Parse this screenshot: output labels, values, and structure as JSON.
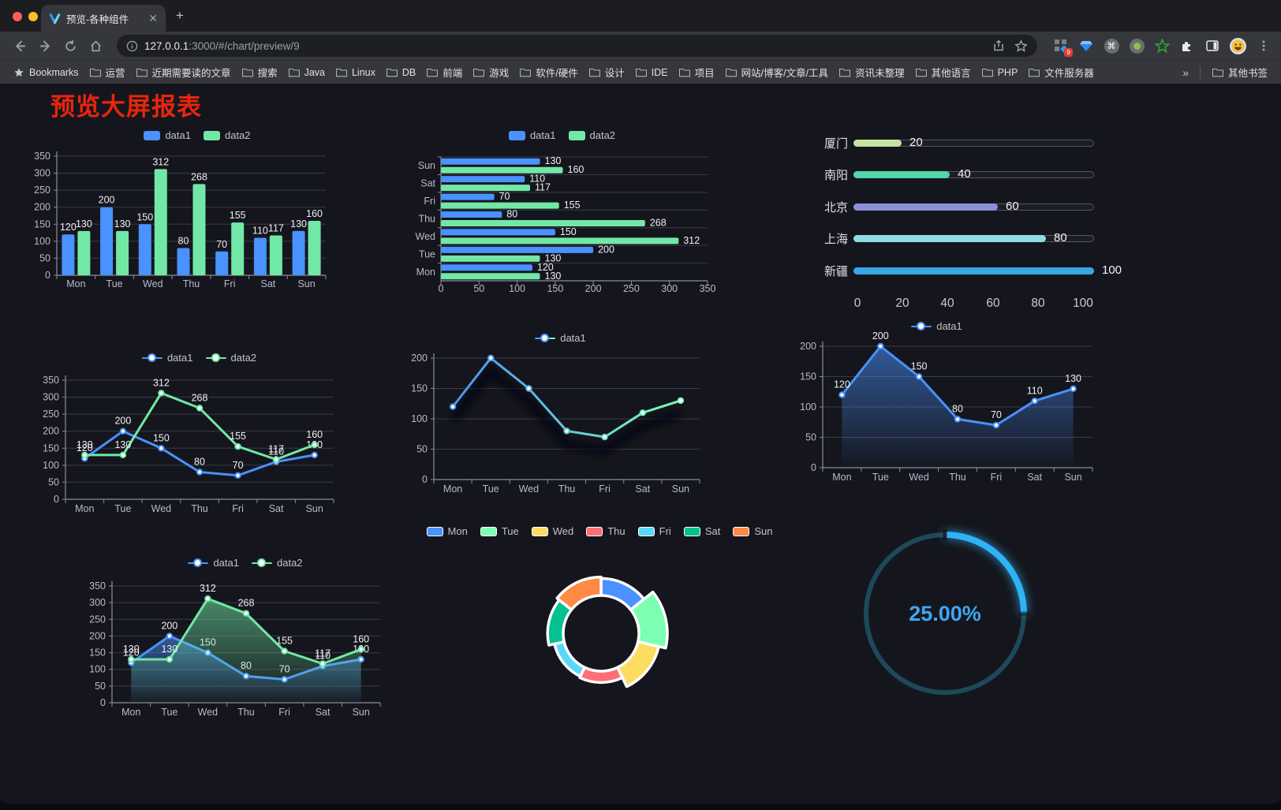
{
  "browser": {
    "tab": {
      "title": "预览-各种组件"
    },
    "url": {
      "host": "127.0.0.1",
      "rest": ":3000/#/chart/preview/9"
    },
    "bookmarks_label": "Bookmarks",
    "bookmarks": [
      "运营",
      "近期需要读的文章",
      "搜索",
      "Java",
      "Linux",
      "DB",
      "前端",
      "游戏",
      "软件/硬件",
      "设计",
      "IDE",
      "项目",
      "网站/博客/文章/工具",
      "资讯未整理",
      "其他语言",
      "PHP",
      "文件服务器"
    ],
    "bookmarks_overflow": "»",
    "other_bookmarks": "其他书签",
    "extension_badge": "9"
  },
  "page": {
    "title": "预览大屏报表",
    "title_color": "#e8250c"
  },
  "colors": {
    "series1": "#4992ff",
    "series2": "#72e8a6",
    "palette": [
      "#4992ff",
      "#7cffb2",
      "#fddd60",
      "#ff6e76",
      "#58d9f9",
      "#05c091",
      "#ff8a45"
    ],
    "gauge_arc": "#2eb3f6",
    "gauge_track": "#1d4959",
    "gauge_text": "#3fa6f3"
  },
  "chart_data": [
    {
      "id": "bar-vertical",
      "type": "bar",
      "categories": [
        "Mon",
        "Tue",
        "Wed",
        "Thu",
        "Fri",
        "Sat",
        "Sun"
      ],
      "series": [
        {
          "name": "data1",
          "color": "#4992ff",
          "values": [
            120,
            200,
            150,
            80,
            70,
            110,
            130
          ]
        },
        {
          "name": "data2",
          "color": "#72e8a6",
          "values": [
            130,
            130,
            312,
            268,
            155,
            117,
            160
          ]
        }
      ],
      "ylim": [
        0,
        350
      ],
      "ystep": 50,
      "legend_position": "top",
      "grid": true,
      "labels": true
    },
    {
      "id": "bar-horizontal",
      "type": "bar-horizontal",
      "categories_top_to_bottom": [
        "Sun",
        "Sat",
        "Fri",
        "Thu",
        "Wed",
        "Tue",
        "Mon"
      ],
      "series": [
        {
          "name": "data1",
          "color": "#4992ff",
          "values": [
            130,
            110,
            70,
            80,
            150,
            200,
            120
          ]
        },
        {
          "name": "data2",
          "color": "#72e8a6",
          "values": [
            160,
            117,
            155,
            268,
            312,
            130,
            130
          ]
        }
      ],
      "xlim": [
        0,
        350
      ],
      "xstep": 50,
      "legend_position": "top",
      "grid": true,
      "labels": true
    },
    {
      "id": "progress-bars",
      "type": "progress",
      "rows": [
        {
          "label": "厦门",
          "value": 20,
          "color": "#c5e3a2"
        },
        {
          "label": "南阳",
          "value": 40,
          "color": "#50d6a8"
        },
        {
          "label": "北京",
          "value": 60,
          "color": "#8a90d8"
        },
        {
          "label": "上海",
          "value": 80,
          "color": "#8edde3"
        },
        {
          "label": "新疆",
          "value": 100,
          "color": "#38a7e8"
        }
      ],
      "xticks": [
        0,
        20,
        40,
        60,
        80,
        100
      ],
      "xlim": [
        0,
        100
      ]
    },
    {
      "id": "line-multi",
      "type": "line",
      "categories": [
        "Mon",
        "Tue",
        "Wed",
        "Thu",
        "Fri",
        "Sat",
        "Sun"
      ],
      "series": [
        {
          "name": "data1",
          "color": "#4992ff",
          "values": [
            120,
            200,
            150,
            80,
            70,
            110,
            130
          ]
        },
        {
          "name": "data2",
          "color": "#72e8a6",
          "values": [
            130,
            130,
            312,
            268,
            155,
            117,
            160
          ]
        }
      ],
      "ylim": [
        0,
        350
      ],
      "ystep": 50,
      "labels": true,
      "legend_position": "top",
      "grid": true
    },
    {
      "id": "line-gradient",
      "type": "line",
      "categories": [
        "Mon",
        "Tue",
        "Wed",
        "Thu",
        "Fri",
        "Sat",
        "Sun"
      ],
      "series": [
        {
          "name": "data1",
          "color": "#4992ff",
          "gradient": [
            "#4992ff",
            "#7cffb2"
          ],
          "shadow": true,
          "values": [
            120,
            200,
            150,
            80,
            70,
            110,
            130
          ]
        }
      ],
      "ylim": [
        0,
        200
      ],
      "ystep": 50,
      "labels": false,
      "legend_position": "top",
      "grid": true
    },
    {
      "id": "line-area",
      "type": "line",
      "categories": [
        "Mon",
        "Tue",
        "Wed",
        "Thu",
        "Fri",
        "Sat",
        "Sun"
      ],
      "series": [
        {
          "name": "data1",
          "color": "#4992ff",
          "area": true,
          "values": [
            120,
            200,
            150,
            80,
            70,
            110,
            130
          ]
        }
      ],
      "ylim": [
        0,
        200
      ],
      "ystep": 50,
      "labels": true,
      "legend_position": "top",
      "grid": true
    },
    {
      "id": "line-multi-area",
      "type": "line",
      "categories": [
        "Mon",
        "Tue",
        "Wed",
        "Thu",
        "Fri",
        "Sat",
        "Sun"
      ],
      "series": [
        {
          "name": "data1",
          "color": "#4992ff",
          "area": true,
          "values": [
            120,
            200,
            150,
            80,
            70,
            110,
            130
          ]
        },
        {
          "name": "data2",
          "color": "#72e8a6",
          "area": true,
          "values": [
            130,
            130,
            312,
            268,
            155,
            117,
            160
          ]
        }
      ],
      "ylim": [
        0,
        350
      ],
      "ystep": 50,
      "labels": true,
      "legend_position": "top",
      "grid": true
    },
    {
      "id": "rose-pie",
      "type": "pie",
      "rose": true,
      "legend": [
        "Mon",
        "Tue",
        "Wed",
        "Thu",
        "Fri",
        "Sat",
        "Sun"
      ],
      "values": [
        120,
        200,
        150,
        80,
        70,
        110,
        130
      ],
      "colors": [
        "#4992ff",
        "#7cffb2",
        "#fddd60",
        "#ff6e76",
        "#58d9f9",
        "#05c091",
        "#ff8a45"
      ],
      "border_color": "#ffffff"
    },
    {
      "id": "gauge",
      "type": "gauge",
      "value": 25,
      "label": "25.00%",
      "arc_color": "#2eb3f6",
      "track_color": "#1d4959",
      "text_color": "#3fa6f3"
    }
  ]
}
